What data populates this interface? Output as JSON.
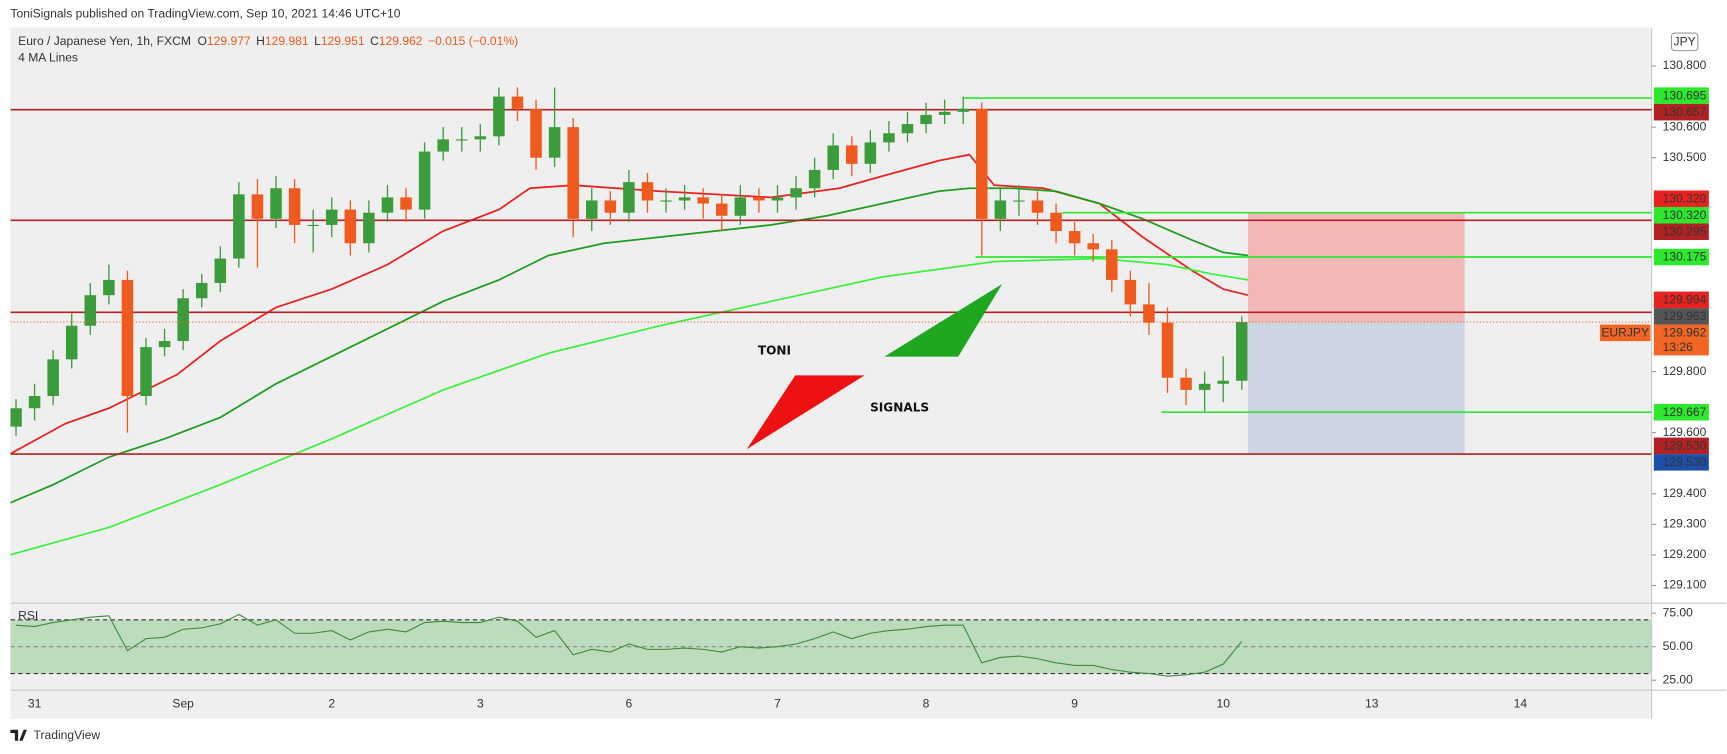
{
  "header": {
    "published": "ToniSignals published on TradingView.com, Sep 10, 2021 14:46 UTC+10"
  },
  "legend": {
    "symbol": "Euro / Japanese Yen, 1h, FXCM",
    "ohlc": [
      {
        "key": "O",
        "value": "129.977"
      },
      {
        "key": "H",
        "value": "129.981"
      },
      {
        "key": "L",
        "value": "129.951"
      },
      {
        "key": "C",
        "value": "129.962"
      }
    ],
    "change": "−0.015 (−0.01%)",
    "indicator": "4 MA Lines"
  },
  "currency": "JPY",
  "watermark": {
    "line1": "TONI",
    "line2": "SIGNALS"
  },
  "footer": "TradingView",
  "chart_data": [
    {
      "type": "candlestick",
      "x": [
        -3,
        0,
        3,
        6,
        9,
        12,
        15,
        18,
        21,
        24,
        27,
        30,
        33,
        36,
        39,
        42,
        45,
        48,
        51,
        54,
        57,
        60,
        63,
        66,
        69,
        72,
        75,
        78,
        81,
        84,
        87,
        90,
        93,
        96,
        99,
        102,
        105,
        108,
        111,
        114,
        117,
        120,
        123,
        126,
        129,
        132,
        135,
        138,
        141,
        144,
        147,
        150,
        153,
        156,
        159,
        162,
        165,
        168,
        171,
        174,
        177,
        180,
        183,
        186,
        189,
        192,
        195
      ],
      "open": [
        129.62,
        129.68,
        129.72,
        129.84,
        129.95,
        130.05,
        130.1,
        129.72,
        129.88,
        129.9,
        130.04,
        130.09,
        130.17,
        130.38,
        130.3,
        130.4,
        130.28,
        130.28,
        130.33,
        130.22,
        130.32,
        130.37,
        130.33,
        130.52,
        130.56,
        130.56,
        130.57,
        130.7,
        130.66,
        130.5,
        130.6,
        130.3,
        130.36,
        130.32,
        130.42,
        130.36,
        130.36,
        130.37,
        130.35,
        130.31,
        130.37,
        130.36,
        130.37,
        130.4,
        130.46,
        130.54,
        130.48,
        130.55,
        130.58,
        130.61,
        130.64,
        130.65,
        130.66,
        130.3,
        130.36,
        130.36,
        130.32,
        130.26,
        130.22,
        130.2,
        130.1,
        130.02,
        129.96,
        129.78,
        129.74,
        129.76,
        129.77
      ],
      "high": [
        129.71,
        129.76,
        129.87,
        129.99,
        130.09,
        130.15,
        130.13,
        129.91,
        129.94,
        130.07,
        130.12,
        130.21,
        130.42,
        130.43,
        130.44,
        130.43,
        130.33,
        130.37,
        130.36,
        130.36,
        130.41,
        130.4,
        130.55,
        130.6,
        130.6,
        130.61,
        130.73,
        130.73,
        130.69,
        130.73,
        130.63,
        130.4,
        130.39,
        130.46,
        130.45,
        130.4,
        130.41,
        130.4,
        130.38,
        130.41,
        130.4,
        130.41,
        130.44,
        130.5,
        130.58,
        130.57,
        130.59,
        130.62,
        130.65,
        130.68,
        130.69,
        130.7,
        130.68,
        130.4,
        130.41,
        130.39,
        130.35,
        130.29,
        130.25,
        130.23,
        130.13,
        130.09,
        130.01,
        129.81,
        129.8,
        129.85,
        129.981
      ],
      "low": [
        129.59,
        129.64,
        129.69,
        129.81,
        129.92,
        130.02,
        129.6,
        129.69,
        129.85,
        129.87,
        130.01,
        130.06,
        130.14,
        130.14,
        130.27,
        130.22,
        130.19,
        130.24,
        130.18,
        130.19,
        130.29,
        130.29,
        130.3,
        130.49,
        130.52,
        130.52,
        130.54,
        130.62,
        130.46,
        130.47,
        130.24,
        130.26,
        130.28,
        130.29,
        130.32,
        130.32,
        130.33,
        130.3,
        130.26,
        130.28,
        130.32,
        130.32,
        130.33,
        130.37,
        130.43,
        130.44,
        130.45,
        130.52,
        130.55,
        130.58,
        130.61,
        130.61,
        130.18,
        130.26,
        130.31,
        130.28,
        130.22,
        130.18,
        130.16,
        130.06,
        129.98,
        129.92,
        129.73,
        129.69,
        129.67,
        129.7,
        129.74
      ],
      "close": [
        129.68,
        129.72,
        129.84,
        129.95,
        130.05,
        130.1,
        129.72,
        129.88,
        129.9,
        130.04,
        130.09,
        130.17,
        130.38,
        130.3,
        130.4,
        130.28,
        130.28,
        130.33,
        130.22,
        130.32,
        130.37,
        130.33,
        130.52,
        130.56,
        130.56,
        130.57,
        130.7,
        130.66,
        130.5,
        130.6,
        130.3,
        130.36,
        130.32,
        130.42,
        130.36,
        130.36,
        130.37,
        130.35,
        130.31,
        130.37,
        130.36,
        130.37,
        130.4,
        130.46,
        130.54,
        130.48,
        130.55,
        130.58,
        130.61,
        130.64,
        130.65,
        130.66,
        130.3,
        130.36,
        130.36,
        130.32,
        130.26,
        130.22,
        130.2,
        130.1,
        130.02,
        129.96,
        129.78,
        129.74,
        129.76,
        129.77,
        129.962
      ],
      "up_color": "#3c9b3b",
      "down_color": "#ef5a1e",
      "xlim": [
        -3.9,
        261.2
      ],
      "ylim": [
        129.042,
        130.926
      ],
      "xticks": [
        {
          "value": 0,
          "label": "31"
        },
        {
          "value": 24,
          "label": "Sep"
        },
        {
          "value": 48,
          "label": "2"
        },
        {
          "value": 72,
          "label": "3"
        },
        {
          "value": 96,
          "label": "6"
        },
        {
          "value": 120,
          "label": "7"
        },
        {
          "value": 144,
          "label": "8"
        },
        {
          "value": 168,
          "label": "9"
        },
        {
          "value": 192,
          "label": "10"
        },
        {
          "value": 216,
          "label": "13"
        },
        {
          "value": 240,
          "label": "14"
        }
      ],
      "yticks": [
        {
          "value": 130.8,
          "label": "130.800"
        },
        {
          "value": 130.6,
          "label": "130.600"
        },
        {
          "value": 130.5,
          "label": "130.500"
        },
        {
          "value": 129.8,
          "label": "129.800"
        },
        {
          "value": 129.6,
          "label": "129.600"
        },
        {
          "value": 129.4,
          "label": "129.400"
        },
        {
          "value": 129.3,
          "label": "129.300"
        },
        {
          "value": 129.2,
          "label": "129.200"
        },
        {
          "value": 129.1,
          "label": "129.100"
        }
      ],
      "lines": [
        {
          "color": "#e8221f",
          "x": [
            -4,
            5,
            12,
            23,
            30,
            39,
            48,
            57,
            66,
            75,
            80,
            87,
            101,
            119,
            130,
            137,
            146,
            151,
            155,
            163,
            172,
            179,
            187,
            192,
            196
          ],
          "values": [
            129.53,
            129.63,
            129.68,
            129.79,
            129.9,
            130.01,
            130.07,
            130.15,
            130.26,
            130.33,
            130.4,
            130.41,
            130.39,
            130.37,
            130.4,
            130.44,
            130.49,
            130.51,
            130.41,
            130.4,
            130.35,
            130.24,
            130.13,
            130.07,
            130.05
          ]
        },
        {
          "color": "#1e9e1e",
          "x": [
            -4,
            3,
            12,
            21,
            30,
            39,
            48,
            57,
            66,
            75,
            83,
            92,
            101,
            119,
            128,
            137,
            146,
            151,
            158,
            165,
            172,
            179,
            187,
            192,
            196
          ],
          "values": [
            129.37,
            129.43,
            129.52,
            129.58,
            129.65,
            129.76,
            129.85,
            129.94,
            130.03,
            130.1,
            130.18,
            130.22,
            130.24,
            130.28,
            130.31,
            130.35,
            130.39,
            130.4,
            130.4,
            130.39,
            130.35,
            130.3,
            130.23,
            130.19,
            130.18
          ]
        },
        {
          "color": "#3ef03e",
          "x": [
            -4,
            12,
            30,
            48,
            66,
            83,
            101,
            119,
            137,
            155,
            172,
            183,
            190,
            196
          ],
          "values": [
            129.2,
            129.29,
            129.43,
            129.58,
            129.74,
            129.86,
            129.95,
            130.03,
            130.11,
            130.16,
            130.17,
            130.15,
            130.12,
            130.1
          ]
        }
      ],
      "levels": [
        {
          "value": 130.657,
          "color": "#b22222"
        },
        {
          "value": 130.295,
          "color": "#b22222"
        },
        {
          "value": 129.994,
          "color": "#b22222"
        },
        {
          "value": 129.53,
          "color": "#b22222"
        },
        {
          "value": 130.695,
          "from": 150,
          "color": "#2ee82e"
        },
        {
          "value": 130.32,
          "from": 166,
          "color": "#2ee82e"
        },
        {
          "value": 130.175,
          "from": 152,
          "color": "#2ee82e"
        },
        {
          "value": 129.667,
          "from": 182,
          "color": "#2ee82e"
        }
      ],
      "position": {
        "entry": 129.962,
        "stop": 130.32,
        "target": 129.53,
        "x": [
          196,
          231
        ],
        "stop_color": "#f2b8b8",
        "target_color": "#cdd5e3"
      },
      "price_labels": [
        {
          "value": 130.695,
          "label": "130.695",
          "color": "#2ee82e",
          "text_color": "#111111"
        },
        {
          "value": 130.657,
          "label": "130.657",
          "color": "#b22222",
          "text_color": "#ffffff"
        },
        {
          "value": 130.32,
          "label": "130.320",
          "color": "#e8221f",
          "text_color": "#ffffff"
        },
        {
          "value": 130.32,
          "label": "130.320",
          "color": "#2ee82e",
          "text_color": "#111111"
        },
        {
          "value": 130.295,
          "label": "130.295",
          "color": "#b22222",
          "text_color": "#ffffff"
        },
        {
          "value": 130.175,
          "label": "130.175",
          "color": "#2ee82e",
          "text_color": "#111111"
        },
        {
          "value": 129.994,
          "label": "129.994",
          "color": "#e8221f",
          "text_color": "#ffffff"
        },
        {
          "value": 129.963,
          "label": "129.963",
          "color": "#555555",
          "text_color": "#ffffff"
        },
        {
          "value": 129.962,
          "label": "129.962",
          "color": "#f26522",
          "text_color": "#ffffff",
          "tag": "EURJPY",
          "countdown": "13:26"
        },
        {
          "value": 129.667,
          "label": "129.667",
          "color": "#2ee82e",
          "text_color": "#111111"
        },
        {
          "value": 129.53,
          "label": "129.530",
          "color": "#b22222",
          "text_color": "#ffffff"
        },
        {
          "value": 129.53,
          "label": "129.530",
          "color": "#1e4fa8",
          "text_color": "#ffffff"
        }
      ]
    },
    {
      "type": "line",
      "title": "RSI",
      "x": [
        -3,
        0,
        3,
        6,
        9,
        12,
        15,
        18,
        21,
        24,
        27,
        30,
        33,
        36,
        39,
        42,
        45,
        48,
        51,
        54,
        57,
        60,
        63,
        66,
        69,
        72,
        75,
        78,
        81,
        84,
        87,
        90,
        93,
        96,
        99,
        102,
        105,
        108,
        111,
        114,
        117,
        120,
        123,
        126,
        129,
        132,
        135,
        138,
        141,
        144,
        147,
        150,
        153,
        156,
        159,
        162,
        165,
        168,
        171,
        174,
        177,
        180,
        183,
        186,
        189,
        192,
        195
      ],
      "values": [
        66,
        65,
        68,
        70,
        72,
        73,
        47,
        56,
        57,
        63,
        64,
        67,
        74,
        66,
        70,
        60,
        60,
        62,
        55,
        61,
        63,
        61,
        68,
        69,
        68,
        68,
        72,
        69,
        57,
        62,
        44,
        48,
        46,
        52,
        48,
        48,
        49,
        48,
        46,
        50,
        49,
        50,
        52,
        56,
        61,
        56,
        60,
        62,
        63,
        65,
        66,
        66,
        38,
        42,
        43,
        41,
        38,
        36,
        36,
        33,
        31,
        30,
        28,
        29,
        31,
        37,
        54
      ],
      "color": "#3d8b3d",
      "band": [
        30,
        70
      ],
      "band_color": "#bddbbd",
      "mid": 50,
      "xlim": [
        -3.9,
        261.2
      ],
      "ylim": [
        17.6,
        82.4
      ],
      "yticks": [
        {
          "value": 75,
          "label": "75.00"
        },
        {
          "value": 50,
          "label": "50.00"
        },
        {
          "value": 25,
          "label": "25.00"
        }
      ]
    }
  ]
}
